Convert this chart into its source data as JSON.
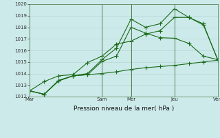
{
  "background_color": "#cdeaea",
  "grid_color": "#b0d0d0",
  "line_color": "#1a6b1a",
  "marker_color": "#1a6b1a",
  "xlabel": "Pression niveau de la mer( hPa )",
  "xtick_labels": [
    "Mar",
    "Sam",
    "Mer",
    "Jeu",
    "Ven"
  ],
  "xtick_positions": [
    0,
    5,
    7,
    10,
    13
  ],
  "ylim": [
    1012,
    1020
  ],
  "yticks": [
    1012,
    1013,
    1014,
    1015,
    1016,
    1017,
    1018,
    1019,
    1020
  ],
  "series1_x": [
    0,
    1,
    2,
    3,
    4,
    5,
    6,
    7,
    8,
    9,
    10,
    11,
    12,
    13
  ],
  "series1_y": [
    1012.5,
    1012.2,
    1013.4,
    1013.8,
    1013.9,
    1015.05,
    1015.5,
    1018.0,
    1017.5,
    1017.1,
    1017.05,
    1016.6,
    1015.5,
    1015.2
  ],
  "series2_x": [
    0,
    1,
    2,
    3,
    4,
    5,
    6,
    7,
    8,
    9,
    10,
    11,
    12,
    13
  ],
  "series2_y": [
    1012.5,
    1012.2,
    1013.4,
    1013.8,
    1014.0,
    1015.2,
    1016.2,
    1018.7,
    1018.0,
    1018.3,
    1019.6,
    1018.85,
    1018.3,
    1015.15
  ],
  "series3_x": [
    0,
    1,
    2,
    3,
    4,
    5,
    6,
    7,
    8,
    9,
    10,
    11,
    12,
    13
  ],
  "series3_y": [
    1012.5,
    1012.2,
    1013.35,
    1013.8,
    1013.9,
    1014.0,
    1014.15,
    1014.35,
    1014.5,
    1014.6,
    1014.7,
    1014.85,
    1015.0,
    1015.15
  ],
  "series4_x": [
    0,
    1,
    2,
    3,
    4,
    5,
    6,
    7,
    8,
    9,
    10,
    11,
    12,
    13
  ],
  "series4_y": [
    1012.5,
    1013.3,
    1013.8,
    1013.9,
    1014.95,
    1015.5,
    1016.55,
    1016.8,
    1017.4,
    1017.7,
    1018.85,
    1018.85,
    1018.2,
    1015.2
  ],
  "vline_positions": [
    0,
    5,
    7,
    10,
    13
  ],
  "figsize": [
    3.2,
    2.0
  ],
  "dpi": 100
}
